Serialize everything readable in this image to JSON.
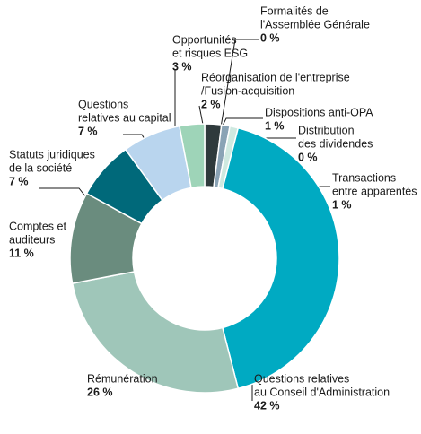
{
  "chart_data": {
    "type": "donut",
    "categories": [
      [
        "Réorganisation de l'entreprise",
        "/Fusion-acquisition"
      ],
      [
        "Formalités de",
        "l'Assemblée Générale"
      ],
      [
        "Dispositions anti-OPA"
      ],
      [
        "Distribution",
        "des dividendes"
      ],
      [
        "Transactions",
        "entre apparentés"
      ],
      [
        "Questions relatives",
        "au Conseil d'Administration"
      ],
      [
        "Rémunération"
      ],
      [
        "Comptes et",
        "auditeurs"
      ],
      [
        "Statuts juridiques",
        "de la société"
      ],
      [
        "Questions",
        "relatives au capital"
      ],
      [
        "Opportunités",
        "et risques ESG"
      ]
    ],
    "values": [
      2,
      0,
      1,
      0,
      1,
      42,
      26,
      11,
      7,
      7,
      3
    ],
    "value_labels": [
      "2 %",
      "0 %",
      "1 %",
      "0 %",
      "1 %",
      "42 %",
      "26 %",
      "11 %",
      "7 %",
      "7 %",
      "3 %"
    ],
    "colors": [
      "#2f3a3c",
      "#5d7f8c",
      "#8aa3b5",
      "#c9d9d4",
      "#cfe9e0",
      "#00aac2",
      "#9fc6b9",
      "#6a8c7e",
      "#00697a",
      "#b9d5ee",
      "#9ed4b8"
    ]
  }
}
